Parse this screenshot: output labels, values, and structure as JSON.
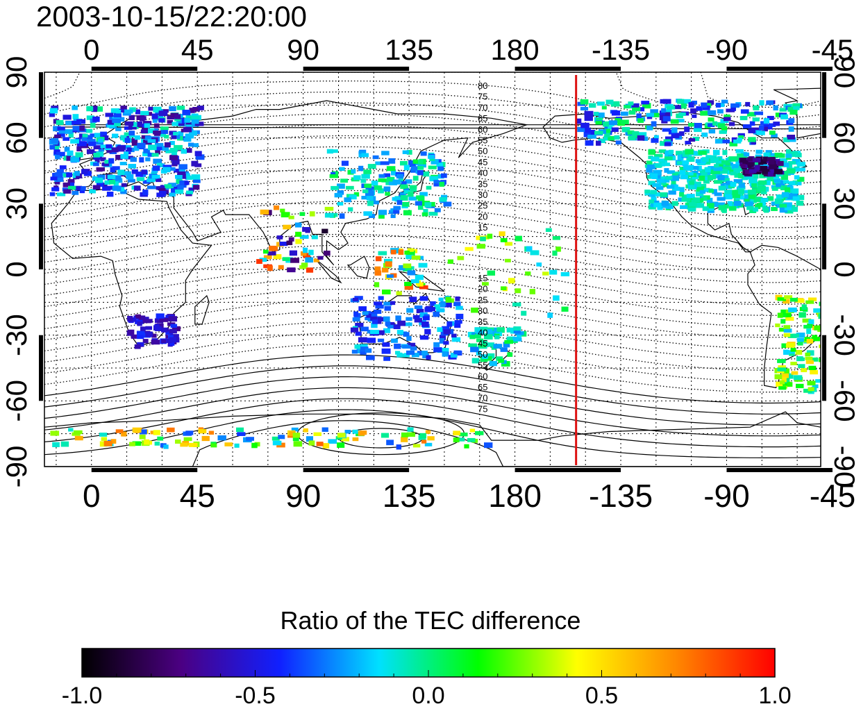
{
  "title": "2003-10-15/22:20:00",
  "map": {
    "x_ticks": [
      "0",
      "45",
      "90",
      "135",
      "180",
      "-135",
      "-90",
      "-45"
    ],
    "y_ticks": [
      "90",
      "60",
      "30",
      "0",
      "-30",
      "-60",
      "-90"
    ],
    "lon_start": -20,
    "lon_end": 310,
    "lat_min": -90,
    "lat_max": 90,
    "marker_line_lon": 206,
    "marker_line_color": "#dd1111",
    "contour_labels_north": [
      "80",
      "75",
      "70",
      "65",
      "60",
      "55",
      "50",
      "45",
      "40",
      "35",
      "30",
      "25",
      "20",
      "15"
    ],
    "contour_labels_south": [
      "15",
      "20",
      "25",
      "30",
      "35",
      "40",
      "45",
      "50",
      "55",
      "60",
      "65",
      "70",
      "75"
    ]
  },
  "colorbar": {
    "title": "Ratio of the TEC difference",
    "labels": [
      "-1.0",
      "-0.5",
      "0.0",
      "0.5",
      "1.0"
    ],
    "range": [
      -1.0,
      1.0
    ],
    "colors": [
      "#000000",
      "#4b0082",
      "#1020ff",
      "#00e0ff",
      "#00ff00",
      "#ffff00",
      "#ff8800",
      "#ff0000"
    ]
  }
}
